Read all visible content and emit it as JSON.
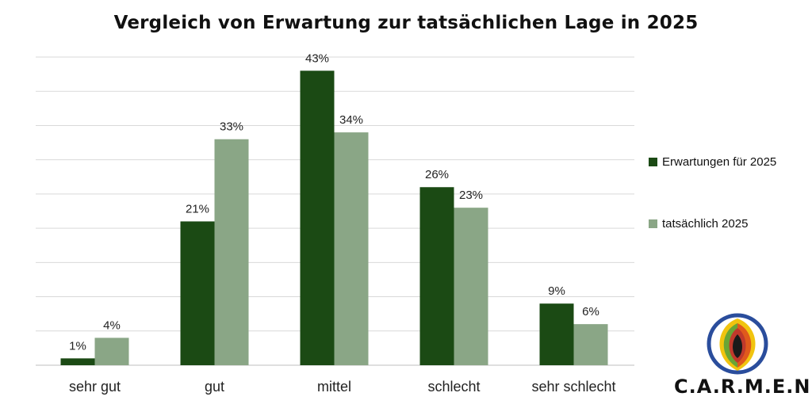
{
  "chart_data": {
    "type": "bar",
    "title": "Vergleich von Erwartung zur tatsächlichen Lage in 2025",
    "categories": [
      "sehr gut",
      "gut",
      "mittel",
      "schlecht",
      "sehr schlecht"
    ],
    "series": [
      {
        "name": "Erwartungen für 2025",
        "values": [
          1,
          21,
          43,
          26,
          9
        ],
        "color": "#1b4a14"
      },
      {
        "name": "tatsächlich 2025",
        "values": [
          4,
          33,
          34,
          23,
          6
        ],
        "color": "#8aa686"
      }
    ],
    "value_suffix": "%",
    "ylim": [
      0,
      45
    ],
    "grid": true,
    "legend_position": "right"
  },
  "logo": {
    "text": "C.A.R.M.E.N.",
    "colors": [
      "#2a4d9c",
      "#f1c40f",
      "#6aa535",
      "#e05a1c",
      "#c0392b",
      "#1a1a1a"
    ]
  }
}
